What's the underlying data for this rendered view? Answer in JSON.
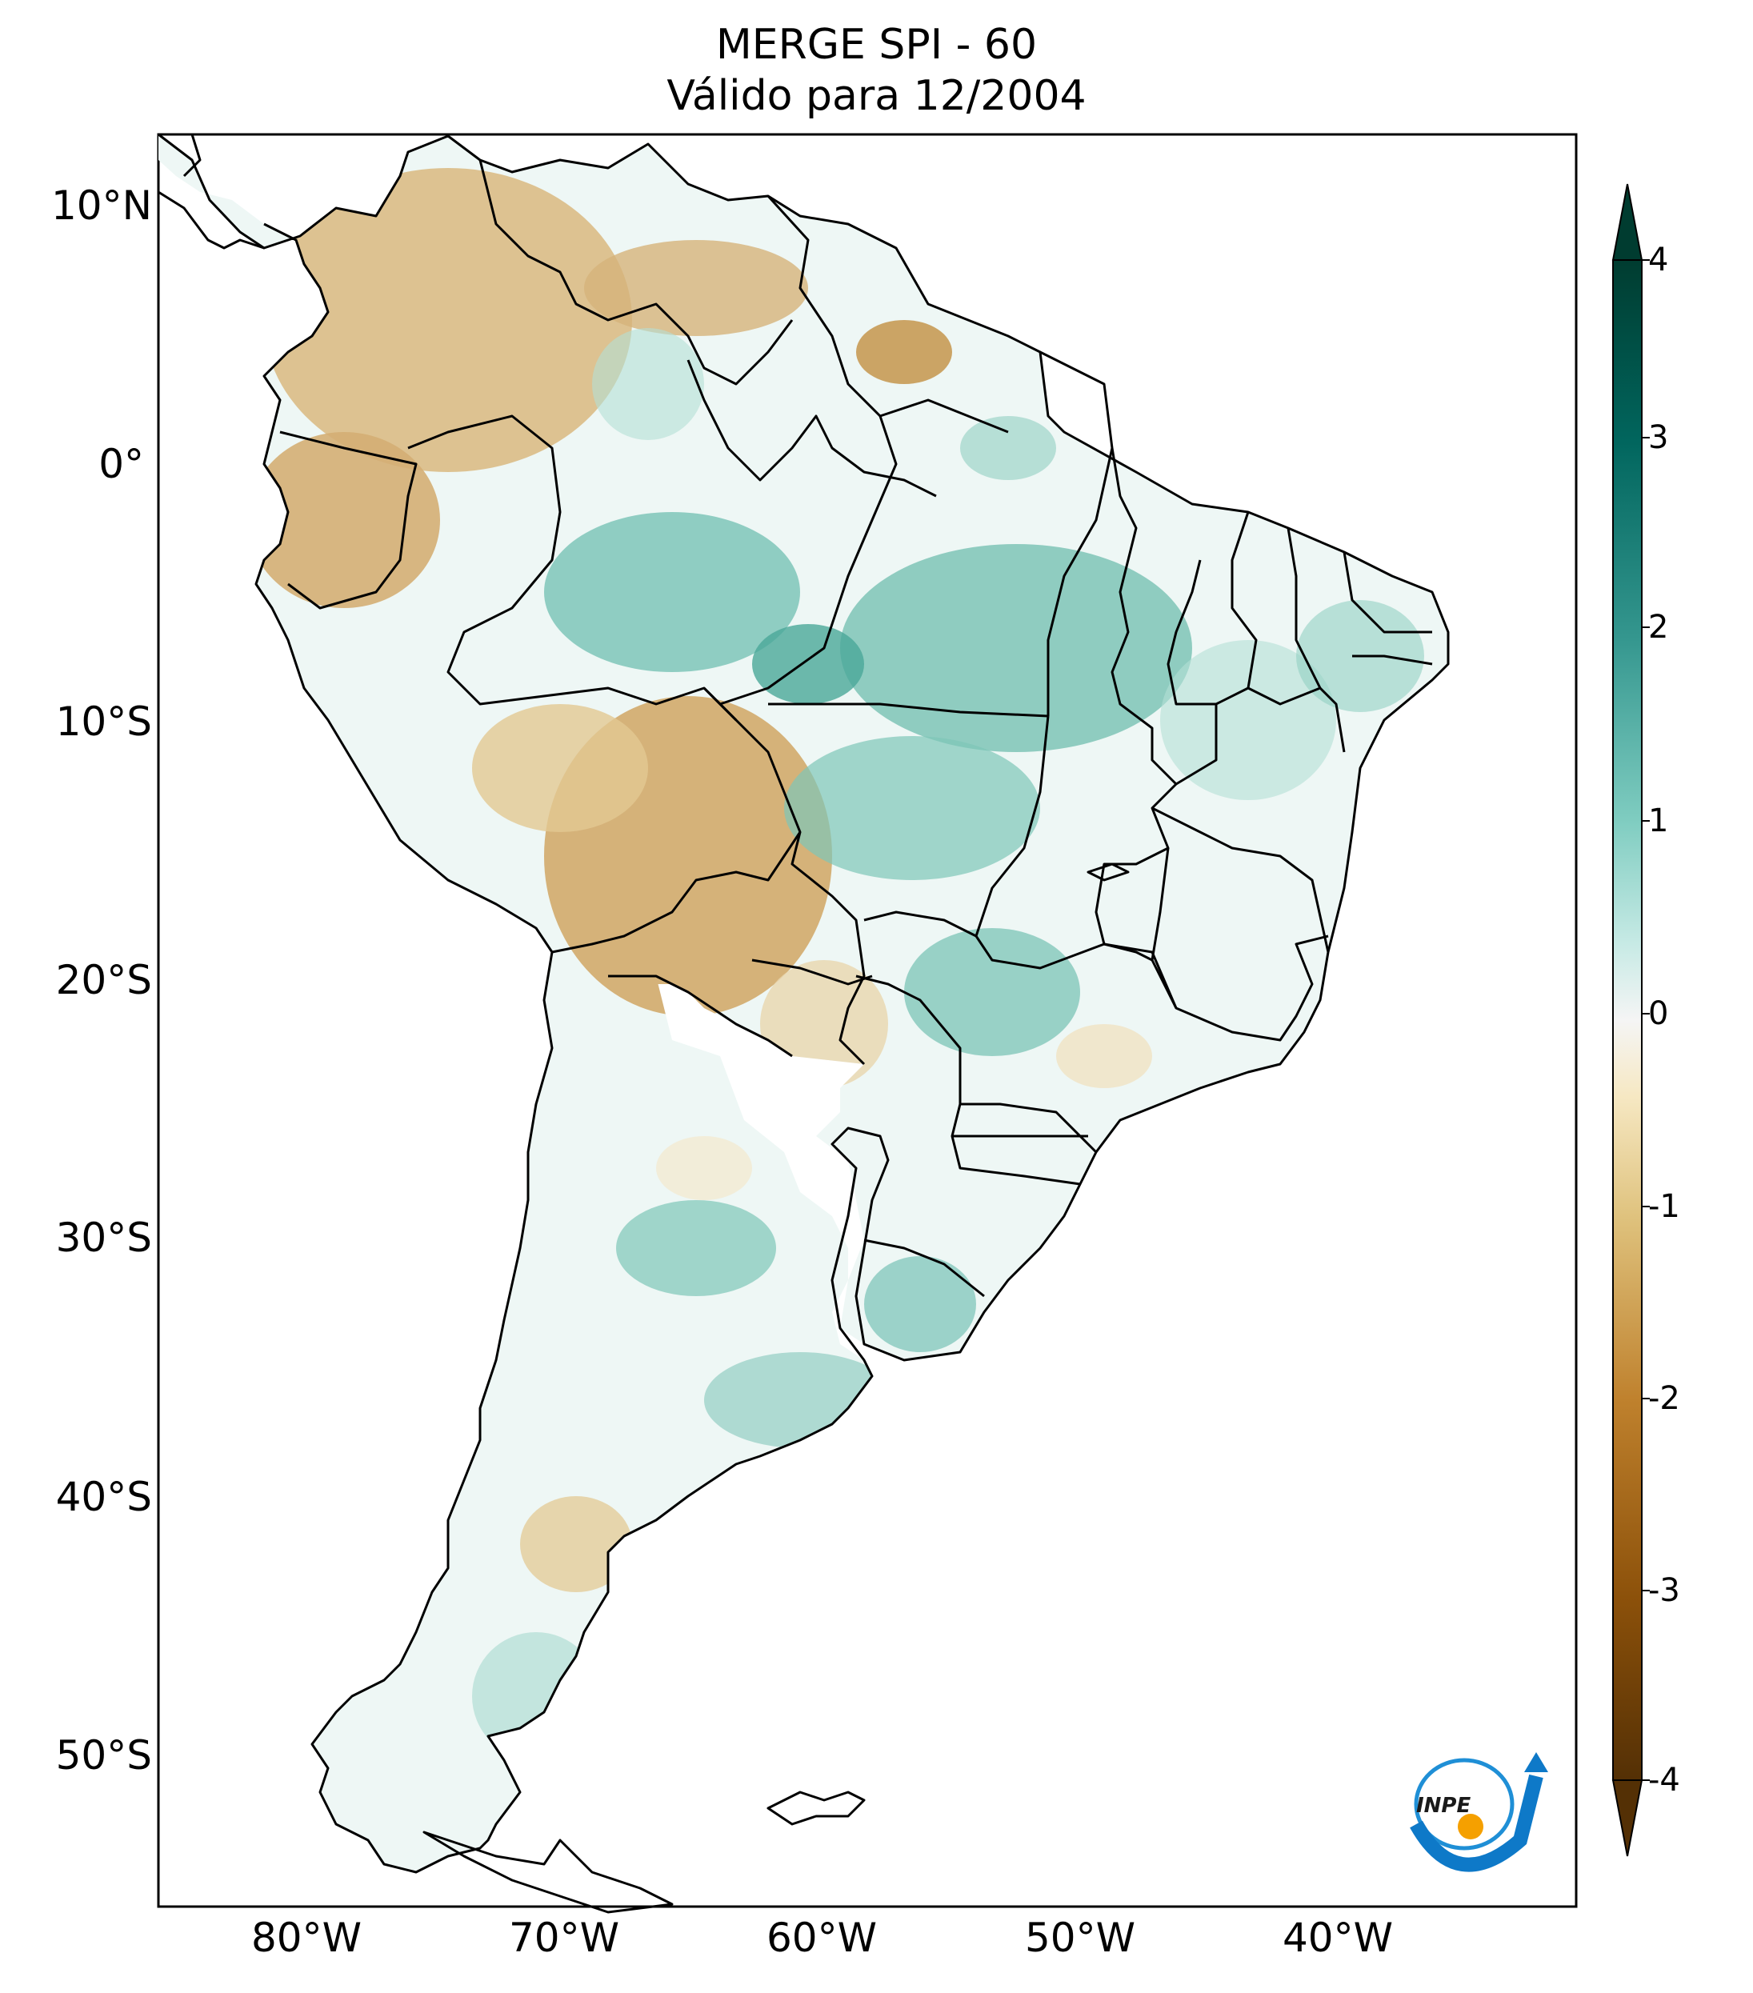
{
  "title": {
    "line1": "MERGE   SPI - 60",
    "line2": "Válido para 12/2004"
  },
  "map": {
    "region": "South America",
    "projection": "PlateCarree",
    "lon_range": [
      -85,
      -30
    ],
    "lat_range": [
      -56,
      12.5
    ],
    "lat_ticks": [
      "10°N",
      "0°",
      "10°S",
      "20°S",
      "30°S",
      "40°S",
      "50°S"
    ],
    "lon_ticks": [
      "80°W",
      "70°W",
      "60°W",
      "50°W",
      "40°W"
    ],
    "colors": {
      "strong_dry": "#7a4a10",
      "dry": "#d4b27a",
      "neutral": "#f5f5f5",
      "wet": "#a8d8cf",
      "strong_wet": "#2e9c8a",
      "border": "#000000"
    }
  },
  "colorbar": {
    "colormap": "BrBG",
    "min": -4,
    "max": 4,
    "ticks": [
      "4",
      "3",
      "2",
      "1",
      "0",
      "-1",
      "-2",
      "-3",
      "-4"
    ],
    "extend": "both"
  },
  "logo": {
    "text": "INPE"
  }
}
